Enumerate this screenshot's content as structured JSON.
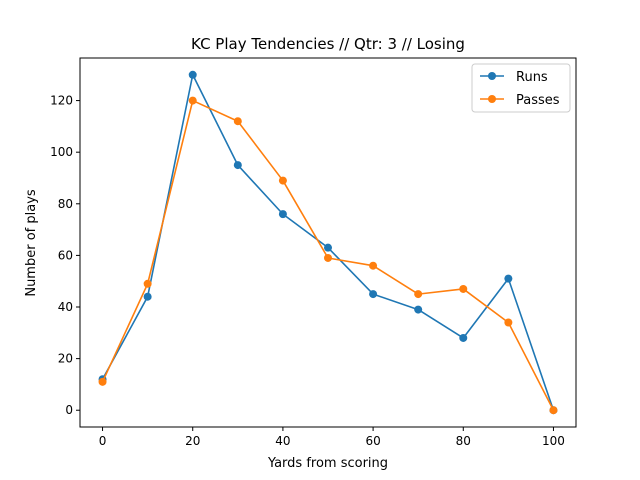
{
  "chart_data": {
    "type": "line",
    "title": "KC Play Tendencies // Qtr: 3 // Losing",
    "xlabel": "Yards from scoring",
    "ylabel": "Number of plays",
    "x": [
      0,
      10,
      20,
      30,
      40,
      50,
      60,
      70,
      80,
      90,
      100
    ],
    "xlim": [
      -5,
      105
    ],
    "ylim": [
      -6.5,
      136.5
    ],
    "xticks": [
      0,
      20,
      40,
      60,
      80,
      100
    ],
    "yticks": [
      0,
      20,
      40,
      60,
      80,
      100,
      120
    ],
    "grid": false,
    "legend_position": "top-right",
    "series": [
      {
        "name": "Runs",
        "color": "#1f77b4",
        "marker": "circle",
        "values": [
          12,
          44,
          130,
          95,
          76,
          63,
          45,
          39,
          28,
          51,
          0
        ]
      },
      {
        "name": "Passes",
        "color": "#ff7f0e",
        "marker": "circle",
        "values": [
          11,
          49,
          120,
          112,
          89,
          59,
          56,
          45,
          47,
          34,
          0
        ]
      }
    ]
  }
}
